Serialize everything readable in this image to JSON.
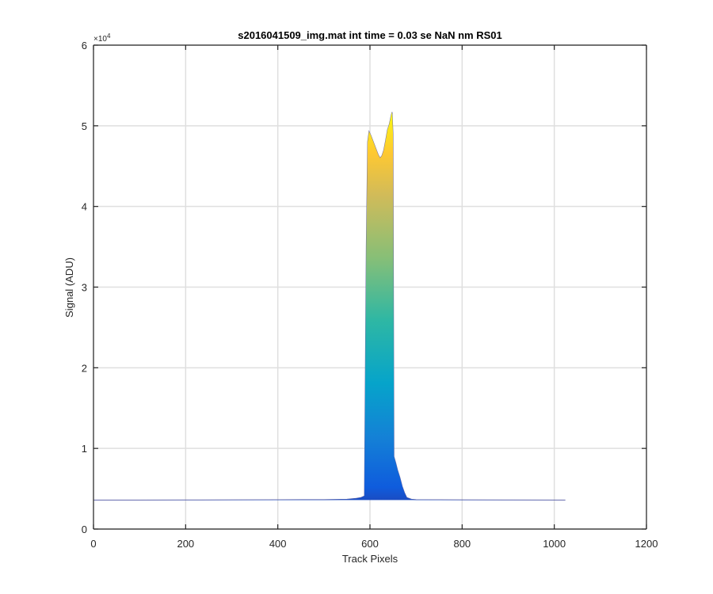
{
  "chart_data": {
    "type": "area",
    "title": "s2016041509_img.mat int time = 0.03 se  NaN nm RS01",
    "xlabel": "Track Pixels",
    "ylabel": "Signal (ADU)",
    "xlim": [
      0,
      1200
    ],
    "ylim": [
      0,
      60000
    ],
    "xticks": [
      0,
      200,
      400,
      600,
      800,
      1000,
      1200
    ],
    "yticks": [
      0,
      1,
      2,
      3,
      4,
      5,
      6
    ],
    "xtick_labels": [
      "0",
      "200",
      "400",
      "600",
      "800",
      "1000",
      "1200"
    ],
    "ytick_labels": [
      "0",
      "1",
      "2",
      "3",
      "4",
      "5",
      "6"
    ],
    "y_exponent_label": "×10",
    "y_exponent_power": "4",
    "grid": true,
    "colormap": "parula",
    "series": [
      {
        "x": [
          1,
          100,
          200,
          300,
          400,
          500,
          550,
          570,
          580,
          588,
          592,
          595,
          598,
          602,
          606,
          610,
          614,
          618,
          622,
          626,
          630,
          634,
          638,
          642,
          646,
          648,
          650,
          652,
          656,
          660,
          665,
          670,
          675,
          680,
          690,
          700,
          800,
          900,
          1024
        ],
        "y": [
          3600,
          3600,
          3610,
          3620,
          3630,
          3650,
          3700,
          3800,
          3900,
          4100,
          35000,
          48000,
          49300,
          48800,
          48200,
          47600,
          47000,
          46400,
          46000,
          46300,
          47000,
          48200,
          49500,
          50200,
          51300,
          51700,
          49000,
          9000,
          8200,
          7300,
          6400,
          5300,
          4500,
          3900,
          3700,
          3650,
          3620,
          3610,
          3600
        ]
      }
    ]
  },
  "colors": {
    "axis": "#262626",
    "grid": "#dfdfdf",
    "parula_low": "#352a87",
    "parula_high": "#f9fb0e"
  }
}
